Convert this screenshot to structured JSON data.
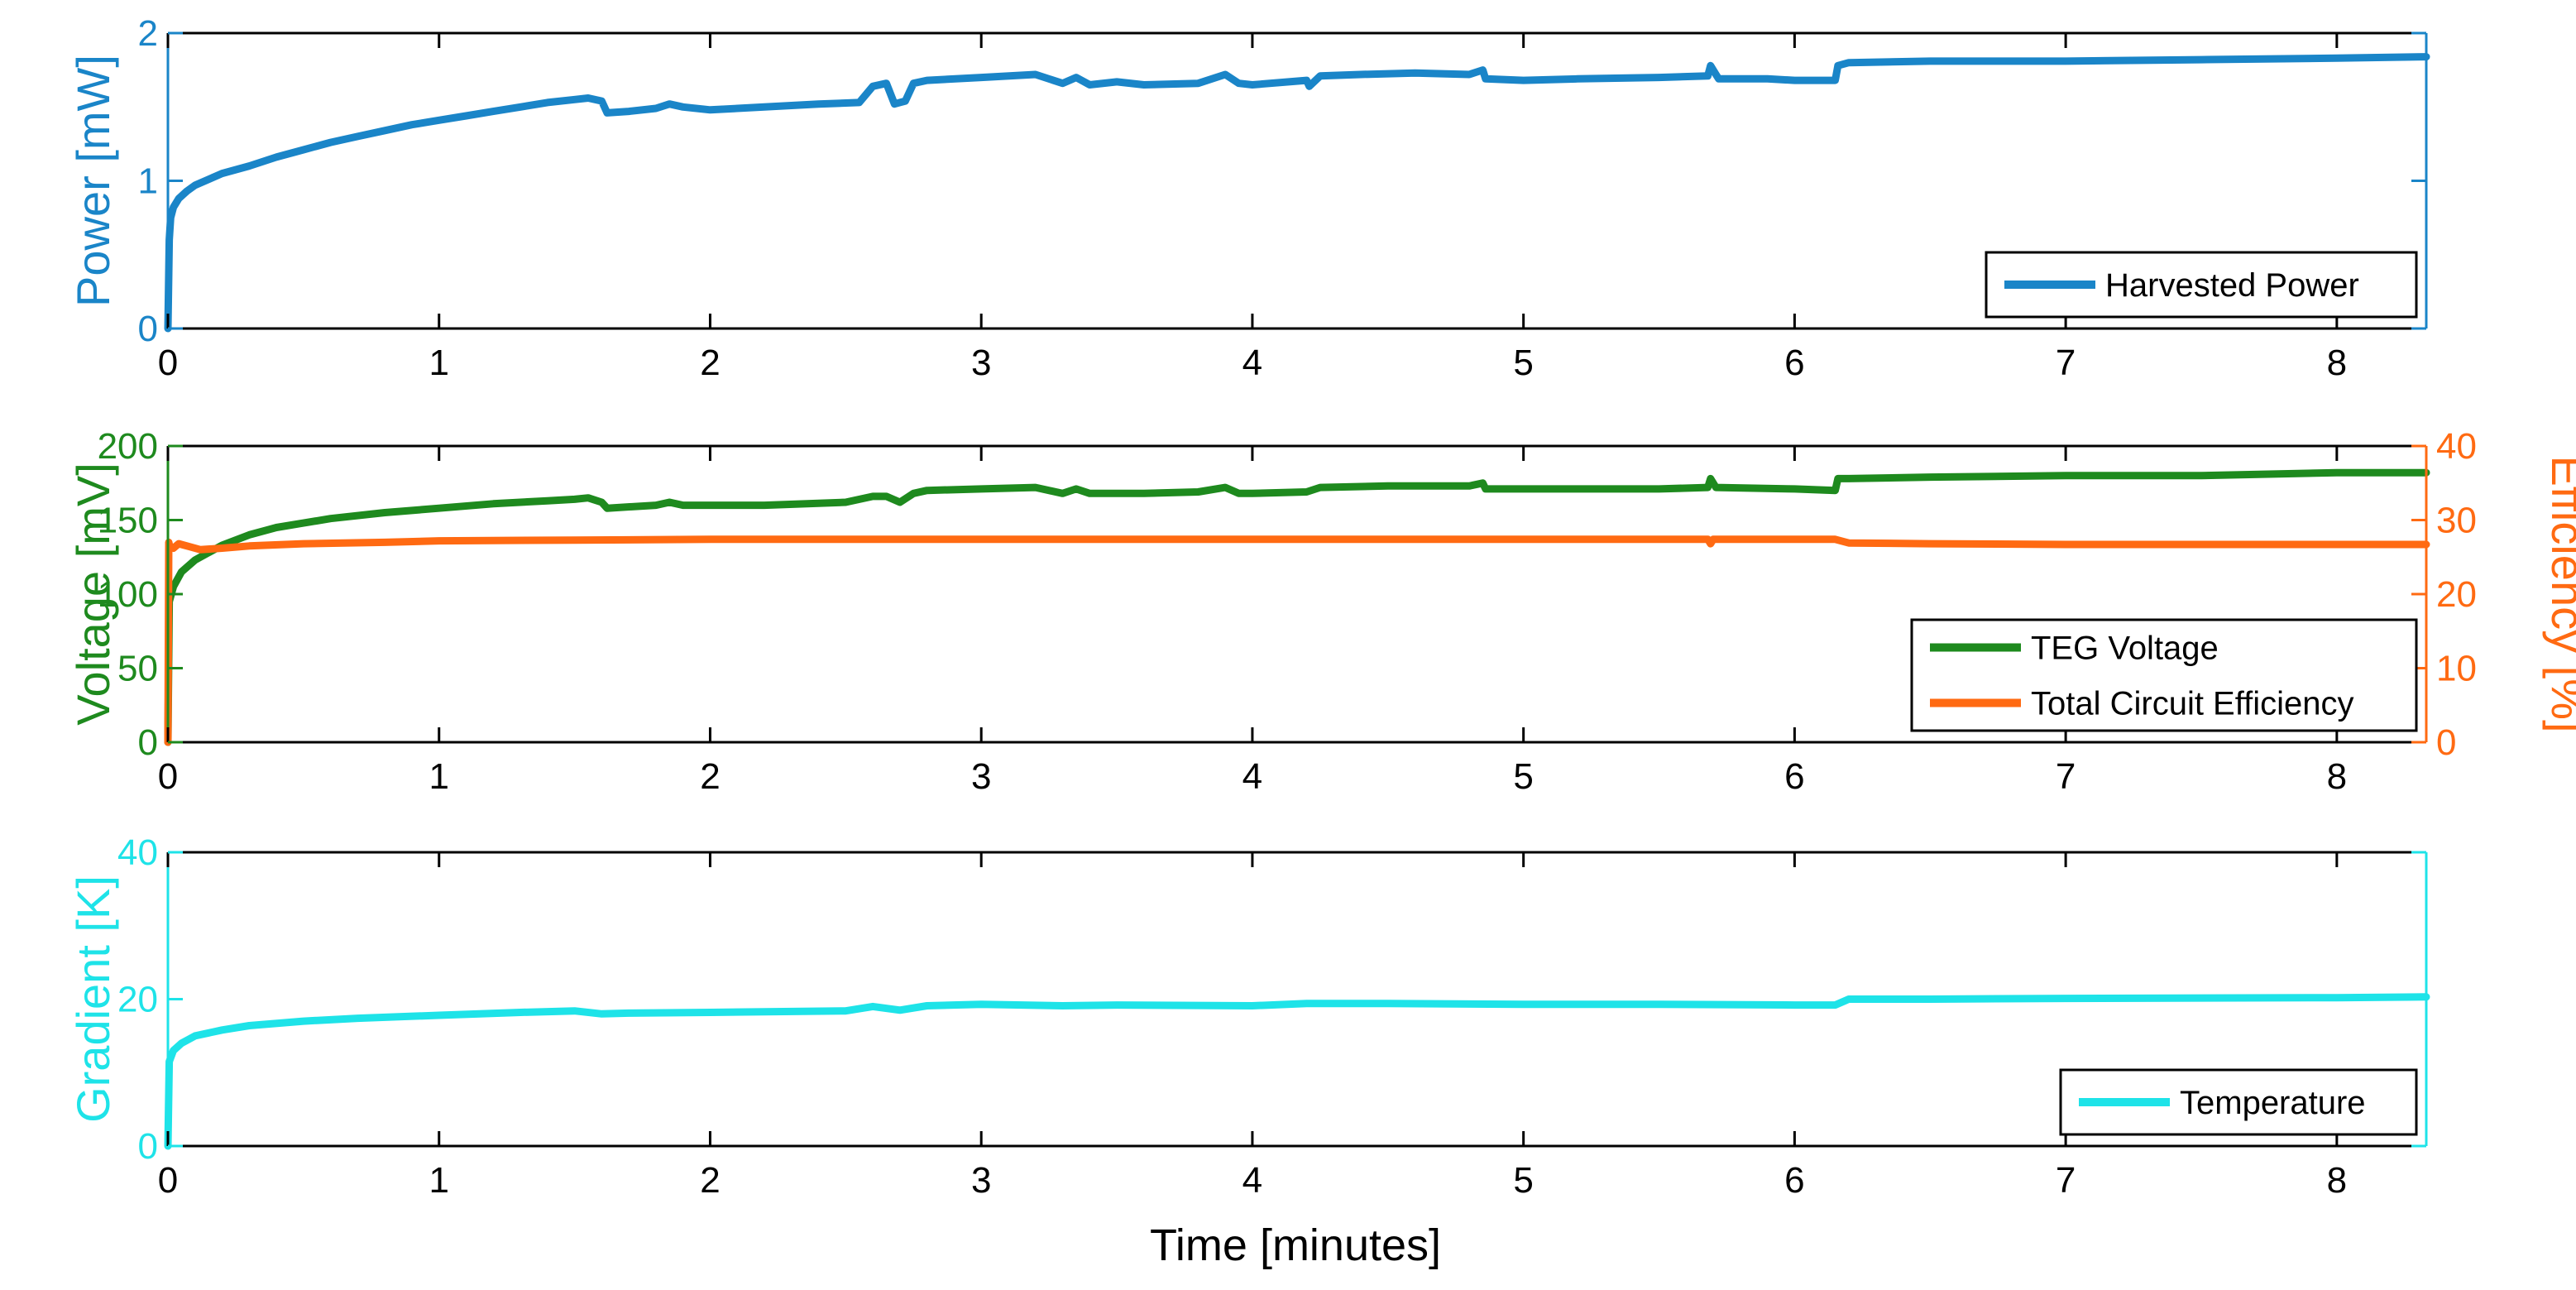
{
  "figure": {
    "xlabel": "Time [minutes]"
  },
  "colors": {
    "power": "#1a85c8",
    "voltage": "#1e8a1e",
    "efficiency": "#ff6a12",
    "temperature": "#1ee3e8",
    "axis": "#000000"
  },
  "chart_data": [
    {
      "type": "line",
      "name": "power-panel",
      "ylabel": "Power [mW]",
      "xlim": [
        0,
        8.33
      ],
      "ylim": [
        0,
        2
      ],
      "x_ticks": [
        0,
        1,
        2,
        3,
        4,
        5,
        6,
        7,
        8
      ],
      "x_tick_labels": [
        "0",
        "1",
        "2",
        "3",
        "4",
        "5",
        "6",
        "7",
        "8"
      ],
      "y_ticks": [
        0,
        1,
        2
      ],
      "y_tick_labels": [
        "0",
        "1",
        "2"
      ],
      "legend_position": "bottom-right",
      "series": [
        {
          "name": "Harvested Power",
          "color": "#1a85c8",
          "x": [
            0,
            0.005,
            0.01,
            0.02,
            0.04,
            0.07,
            0.1,
            0.15,
            0.2,
            0.3,
            0.4,
            0.5,
            0.6,
            0.7,
            0.8,
            0.9,
            1.0,
            1.1,
            1.2,
            1.3,
            1.4,
            1.5,
            1.55,
            1.6,
            1.62,
            1.7,
            1.8,
            1.85,
            1.9,
            2.0,
            2.2,
            2.4,
            2.55,
            2.6,
            2.65,
            2.68,
            2.72,
            2.75,
            2.8,
            3.0,
            3.2,
            3.3,
            3.35,
            3.4,
            3.5,
            3.6,
            3.8,
            3.9,
            3.95,
            4.0,
            4.2,
            4.21,
            4.25,
            4.4,
            4.6,
            4.8,
            4.85,
            4.86,
            5.0,
            5.2,
            5.5,
            5.68,
            5.69,
            5.71,
            5.72,
            5.9,
            6.0,
            6.15,
            6.16,
            6.2,
            6.5,
            7.0,
            7.5,
            8.0,
            8.33
          ],
          "y": [
            0.0,
            0.6,
            0.75,
            0.82,
            0.88,
            0.93,
            0.97,
            1.01,
            1.05,
            1.1,
            1.16,
            1.21,
            1.26,
            1.3,
            1.34,
            1.38,
            1.41,
            1.44,
            1.47,
            1.5,
            1.53,
            1.55,
            1.56,
            1.54,
            1.46,
            1.47,
            1.49,
            1.52,
            1.5,
            1.48,
            1.5,
            1.52,
            1.53,
            1.64,
            1.66,
            1.52,
            1.54,
            1.66,
            1.68,
            1.7,
            1.72,
            1.66,
            1.7,
            1.65,
            1.67,
            1.65,
            1.66,
            1.72,
            1.66,
            1.65,
            1.68,
            1.64,
            1.71,
            1.72,
            1.73,
            1.72,
            1.75,
            1.69,
            1.68,
            1.69,
            1.7,
            1.71,
            1.78,
            1.72,
            1.69,
            1.69,
            1.68,
            1.68,
            1.78,
            1.8,
            1.81,
            1.81,
            1.82,
            1.83,
            1.84
          ]
        }
      ]
    },
    {
      "type": "line",
      "name": "voltage-efficiency-panel",
      "ylabel": "Voltage [mV]",
      "ylabel_right": "Efficiency [%]",
      "xlim": [
        0,
        8.33
      ],
      "ylim": [
        0,
        200
      ],
      "ylim_right": [
        0,
        40
      ],
      "x_ticks": [
        0,
        1,
        2,
        3,
        4,
        5,
        6,
        7,
        8
      ],
      "x_tick_labels": [
        "0",
        "1",
        "2",
        "3",
        "4",
        "5",
        "6",
        "7",
        "8"
      ],
      "y_ticks": [
        0,
        50,
        100,
        150,
        200
      ],
      "y_tick_labels": [
        "0",
        "50",
        "100",
        "150",
        "200"
      ],
      "y_ticks_right": [
        0,
        10,
        20,
        30,
        40
      ],
      "y_tick_labels_right": [
        "0",
        "10",
        "20",
        "30",
        "40"
      ],
      "legend_position": "bottom-right",
      "series": [
        {
          "name": "TEG Voltage",
          "axis": "left",
          "color": "#1e8a1e",
          "x": [
            0,
            0.005,
            0.02,
            0.05,
            0.1,
            0.2,
            0.3,
            0.4,
            0.5,
            0.6,
            0.8,
            1.0,
            1.2,
            1.4,
            1.5,
            1.55,
            1.6,
            1.62,
            1.8,
            1.85,
            1.9,
            2.2,
            2.5,
            2.6,
            2.65,
            2.7,
            2.75,
            2.8,
            3.0,
            3.2,
            3.3,
            3.35,
            3.4,
            3.6,
            3.8,
            3.9,
            3.95,
            4.0,
            4.2,
            4.25,
            4.5,
            4.8,
            4.85,
            4.86,
            5.0,
            5.5,
            5.68,
            5.69,
            5.71,
            6.0,
            6.15,
            6.16,
            6.2,
            6.5,
            7.0,
            7.5,
            8.0,
            8.33
          ],
          "y": [
            0,
            95,
            105,
            115,
            123,
            133,
            140,
            145,
            148,
            151,
            155,
            158,
            161,
            163,
            164,
            165,
            162,
            158,
            160,
            162,
            160,
            160,
            162,
            166,
            166,
            162,
            168,
            170,
            171,
            172,
            168,
            171,
            168,
            168,
            169,
            172,
            168,
            168,
            169,
            172,
            173,
            173,
            175,
            171,
            171,
            171,
            172,
            178,
            172,
            171,
            170,
            178,
            178,
            179,
            180,
            180,
            182,
            182
          ]
        },
        {
          "name": "Total Circuit Efficiency",
          "axis": "right",
          "color": "#ff6a12",
          "x": [
            0,
            0.003,
            0.006,
            0.02,
            0.04,
            0.08,
            0.12,
            0.2,
            0.3,
            0.5,
            0.8,
            1.0,
            1.5,
            2.0,
            3.0,
            4.0,
            5.0,
            5.68,
            5.69,
            5.7,
            6.0,
            6.15,
            6.2,
            6.5,
            7.0,
            8.0,
            8.33
          ],
          "y": [
            0,
            27,
            26.5,
            26.2,
            26.8,
            26.4,
            26.0,
            26.2,
            26.5,
            26.8,
            27.0,
            27.2,
            27.3,
            27.4,
            27.4,
            27.4,
            27.4,
            27.4,
            26.8,
            27.4,
            27.4,
            27.4,
            26.9,
            26.8,
            26.7,
            26.7,
            26.7
          ]
        }
      ]
    },
    {
      "type": "line",
      "name": "gradient-panel",
      "ylabel": "Gradient [K]",
      "xlim": [
        0,
        8.33
      ],
      "ylim": [
        0,
        40
      ],
      "x_ticks": [
        0,
        1,
        2,
        3,
        4,
        5,
        6,
        7,
        8
      ],
      "x_tick_labels": [
        "0",
        "1",
        "2",
        "3",
        "4",
        "5",
        "6",
        "7",
        "8"
      ],
      "y_ticks": [
        0,
        20,
        40
      ],
      "y_tick_labels": [
        "0",
        "20",
        "40"
      ],
      "legend_position": "bottom-right",
      "series": [
        {
          "name": "Temperature",
          "color": "#1ee3e8",
          "x": [
            0,
            0.005,
            0.02,
            0.05,
            0.1,
            0.2,
            0.3,
            0.5,
            0.7,
            1.0,
            1.3,
            1.5,
            1.6,
            1.7,
            2.0,
            2.5,
            2.6,
            2.7,
            2.8,
            3.0,
            3.3,
            3.5,
            4.0,
            4.2,
            4.5,
            5.0,
            5.5,
            6.0,
            6.15,
            6.2,
            6.5,
            7.0,
            8.0,
            8.33
          ],
          "y": [
            0,
            11.5,
            13,
            14,
            15,
            15.8,
            16.4,
            17,
            17.4,
            17.8,
            18.2,
            18.4,
            18.0,
            18.1,
            18.2,
            18.4,
            19.0,
            18.5,
            19.1,
            19.3,
            19.1,
            19.2,
            19.1,
            19.4,
            19.4,
            19.3,
            19.3,
            19.2,
            19.2,
            20.0,
            20.0,
            20.1,
            20.2,
            20.3
          ]
        }
      ]
    }
  ]
}
